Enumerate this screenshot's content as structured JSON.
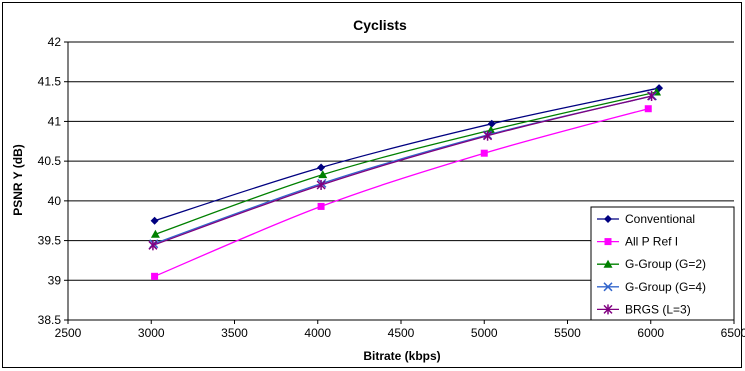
{
  "chart_data": {
    "type": "line",
    "title": "Cyclists",
    "xlabel": "Bitrate (kbps)",
    "ylabel": "PSNR Y (dB)",
    "xlim": [
      2500,
      6500
    ],
    "ylim": [
      38.5,
      42
    ],
    "x_ticks": [
      "2500",
      "3000",
      "3500",
      "4000",
      "4500",
      "5000",
      "5500",
      "6000",
      "6500"
    ],
    "y_ticks": [
      "38.5",
      "39",
      "39.5",
      "40",
      "40.5",
      "41",
      "41.5",
      "42"
    ],
    "grid": "horizontal",
    "legend_position": "bottom-right",
    "series": [
      {
        "name": "Conventional",
        "color": "#000080",
        "marker": "diamond",
        "x": [
          3020,
          4020,
          5045,
          6050
        ],
        "y": [
          39.75,
          40.42,
          40.97,
          41.42
        ]
      },
      {
        "name": "All P Ref I",
        "color": "#ff00ff",
        "marker": "square",
        "x": [
          3020,
          4020,
          5000,
          5985
        ],
        "y": [
          39.05,
          39.93,
          40.6,
          41.16
        ]
      },
      {
        "name": "G-Group (G=2)",
        "color": "#008000",
        "marker": "triangle",
        "x": [
          3025,
          4030,
          5040,
          6035
        ],
        "y": [
          39.58,
          40.33,
          40.89,
          41.37
        ]
      },
      {
        "name": "G-Group (G=4)",
        "color": "#3366cc",
        "marker": "x",
        "x": [
          3015,
          4025,
          5020,
          6010
        ],
        "y": [
          39.46,
          40.22,
          40.83,
          41.32
        ]
      },
      {
        "name": "BRGS (L=3)",
        "color": "#800080",
        "marker": "star",
        "x": [
          3010,
          4020,
          5020,
          6005
        ],
        "y": [
          39.44,
          40.2,
          40.82,
          41.32
        ]
      }
    ]
  }
}
